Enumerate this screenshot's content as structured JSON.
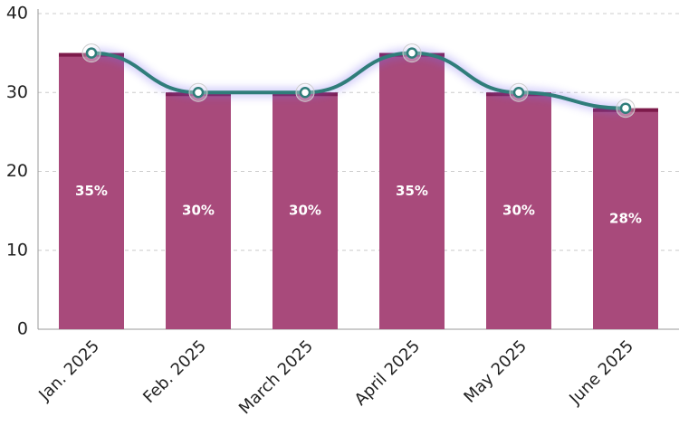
{
  "chart_data": {
    "type": "bar",
    "categories": [
      "Jan. 2025",
      "Feb. 2025",
      "March 2025",
      "April 2025",
      "May 2025",
      "June 2025"
    ],
    "values": [
      35,
      30,
      30,
      35,
      30,
      28
    ],
    "value_labels": [
      "35%",
      "30%",
      "30%",
      "35%",
      "30%",
      "28%"
    ],
    "color": "#a84a7b",
    "line": true,
    "line_color": "#2f7d7a",
    "ylim": [
      0,
      40
    ],
    "yticks": [
      0,
      10,
      20,
      30,
      40
    ],
    "grid": true
  }
}
